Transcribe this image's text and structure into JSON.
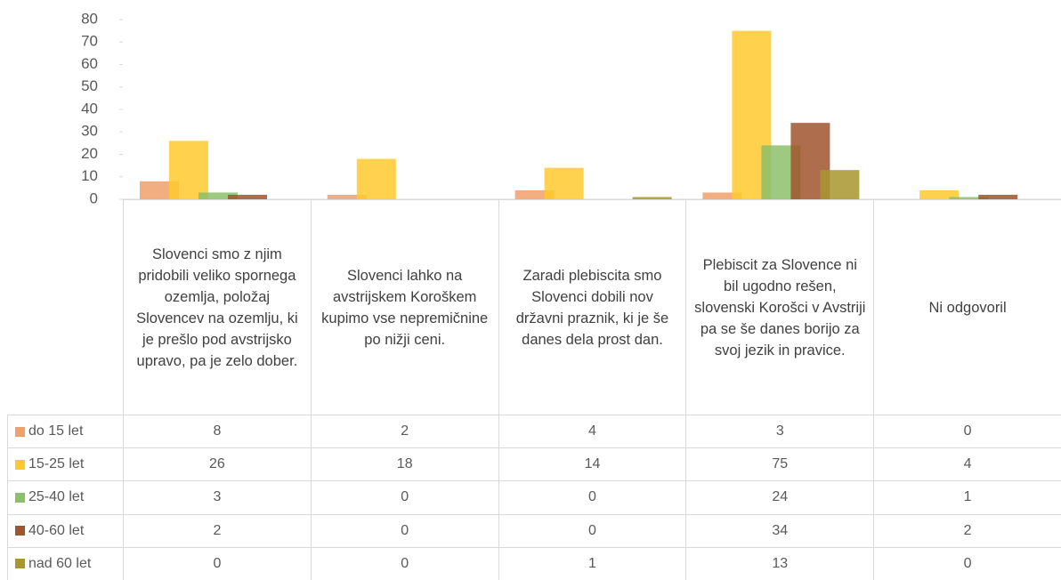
{
  "chart_data": {
    "type": "bar",
    "categories": [
      "Slovenci smo z njim pridobili veliko spornega ozemlja, položaj Slovencev na ozemlju, ki je prešlo pod avstrijsko upravo, pa je zelo dober.",
      "Slovenci lahko na avstrijskem Koroškem kupimo vse nepremičnine po nižji ceni.",
      "Zaradi plebiscita smo Slovenci dobili nov državni praznik, ki je še danes dela prost dan.",
      "Plebiscit za Slovence ni bil ugodno rešen, slovenski Korošci v Avstriji pa se še danes borijo za svoj jezik in pravice.",
      "Ni odgovoril"
    ],
    "series": [
      {
        "name": "do 15 let",
        "color": "#f0a06a",
        "values": [
          8,
          2,
          4,
          3,
          0
        ]
      },
      {
        "name": "15-25 let",
        "color": "#ffc92e",
        "values": [
          26,
          18,
          14,
          75,
          4
        ]
      },
      {
        "name": "25-40 let",
        "color": "#8cc06a",
        "values": [
          3,
          0,
          0,
          24,
          1
        ]
      },
      {
        "name": "40-60 let",
        "color": "#a0552e",
        "values": [
          2,
          0,
          0,
          34,
          2
        ]
      },
      {
        "name": "nad 60 let",
        "color": "#a8962e",
        "values": [
          0,
          0,
          1,
          13,
          0
        ]
      }
    ],
    "ylim": [
      0,
      80
    ],
    "yticks": [
      0,
      10,
      20,
      30,
      40,
      50,
      60,
      70,
      80
    ]
  }
}
